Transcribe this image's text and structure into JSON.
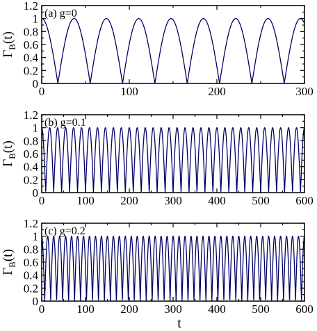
{
  "figure": {
    "xlabel": "t"
  },
  "chart_data": [
    {
      "type": "line",
      "annotation": "(a) g=0",
      "ylabel": "Γ",
      "ylabel_sub": "B",
      "ylabel_tail": "(t)",
      "xlim": [
        0,
        300
      ],
      "ylim": [
        0,
        1.2
      ],
      "xticks": [
        0,
        100,
        200,
        300
      ],
      "yticks": [
        0,
        0.2,
        0.4,
        0.6,
        0.8,
        1,
        1.2
      ],
      "series": [
        {
          "function": "|cos(omega t)|",
          "omega": 0.0851,
          "color": "#000066"
        }
      ]
    },
    {
      "type": "line",
      "annotation": "(b) g=0.1",
      "ylabel": "Γ",
      "ylabel_sub": "B",
      "ylabel_tail": "(t)",
      "xlim": [
        0,
        600
      ],
      "ylim": [
        0,
        1.2
      ],
      "xticks": [
        0,
        100,
        200,
        300,
        400,
        500,
        600
      ],
      "yticks": [
        0,
        0.2,
        0.4,
        0.6,
        0.8,
        1,
        1.2
      ],
      "series": [
        {
          "function": "|cos(omega t)|",
          "omega": 0.1728,
          "color": "#000066"
        }
      ]
    },
    {
      "type": "line",
      "annotation": "(c) g=0.2",
      "ylabel": "Γ",
      "ylabel_sub": "B",
      "ylabel_tail": "(t)",
      "xlim": [
        0,
        600
      ],
      "ylim": [
        0,
        1.2
      ],
      "xticks": [
        0,
        100,
        200,
        300,
        400,
        500,
        600
      ],
      "yticks": [
        0,
        0.2,
        0.4,
        0.6,
        0.8,
        1,
        1.2
      ],
      "series": [
        {
          "function": "|cos(omega t)|",
          "omega": 0.2304,
          "color": "#000066"
        }
      ]
    }
  ]
}
